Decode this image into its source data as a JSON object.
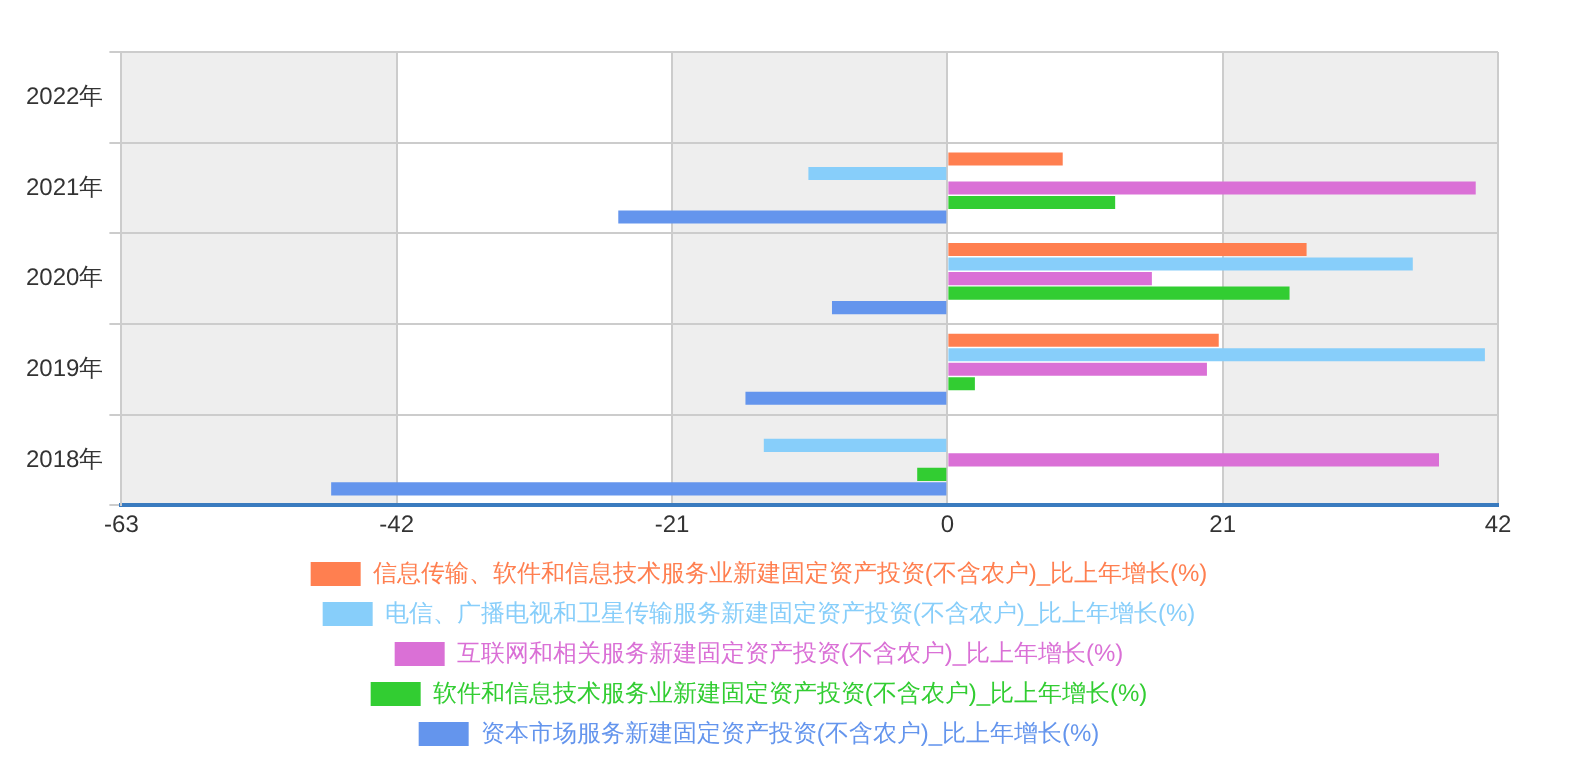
{
  "chart_data": {
    "type": "bar",
    "orientation": "horizontal",
    "categories": [
      "2022年",
      "2021年",
      "2020年",
      "2019年",
      "2018年"
    ],
    "series": [
      {
        "name": "信息传输、软件和信息技术服务业新建固定资产投资(不含农户)_比上年增长(%)",
        "color": "#ff7f50",
        "values": [
          null,
          8.8,
          27.4,
          20.7,
          null
        ]
      },
      {
        "name": "电信、广播电视和卫星传输服务新建固定资产投资(不含农户)_比上年增长(%)",
        "color": "#87cefa",
        "values": [
          null,
          -10.6,
          35.5,
          41.0,
          -14.0
        ]
      },
      {
        "name": "互联网和相关服务新建固定资产投资(不含农户)_比上年增长(%)",
        "color": "#da70d6",
        "values": [
          null,
          40.3,
          15.6,
          19.8,
          37.5
        ]
      },
      {
        "name": "软件和信息技术服务业新建固定资产投资(不含农户)_比上年增长(%)",
        "color": "#32cd32",
        "values": [
          null,
          12.8,
          26.1,
          2.1,
          -2.3
        ]
      },
      {
        "name": "资本市场服务新建固定资产投资(不含农户)_比上年增长(%)",
        "color": "#6495ed",
        "values": [
          null,
          -25.1,
          -8.8,
          -15.4,
          -47.0
        ]
      }
    ],
    "xlim": [
      -63,
      42
    ],
    "xticks": [
      -63,
      -42,
      -21,
      0,
      21,
      42
    ],
    "grid": true,
    "legend": "bottom"
  }
}
